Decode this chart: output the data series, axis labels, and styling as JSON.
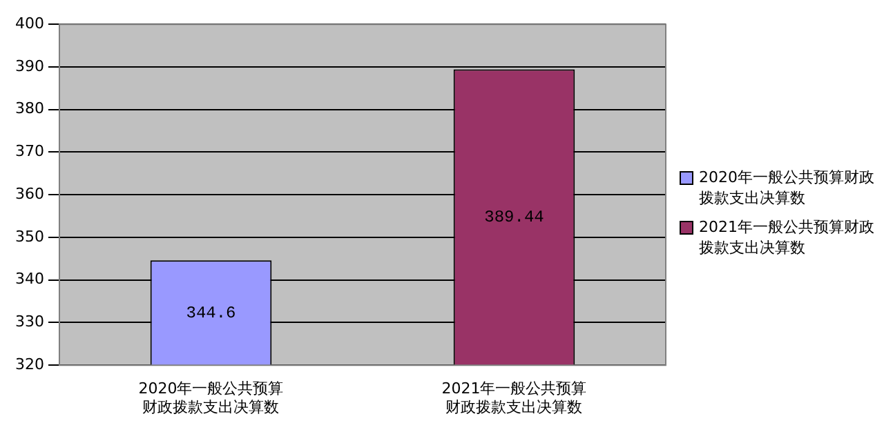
{
  "chart_data": {
    "type": "bar",
    "categories": [
      "2020年一般公共预算财政拨款支出决算数",
      "2021年一般公共预算财政拨款支出决算数"
    ],
    "series": [
      {
        "name": "2020年一般公共预算财政拨款支出决算数",
        "color": "#9999ff",
        "values": [
          344.6,
          null
        ]
      },
      {
        "name": "2021年一般公共预算财政拨款支出决算数",
        "color": "#993366",
        "values": [
          null,
          389.44
        ]
      }
    ],
    "ylim": [
      320,
      400
    ],
    "yticks": [
      320,
      330,
      340,
      350,
      360,
      370,
      380,
      390,
      400
    ],
    "grid": "y",
    "legend": "right",
    "data_labels": true
  }
}
